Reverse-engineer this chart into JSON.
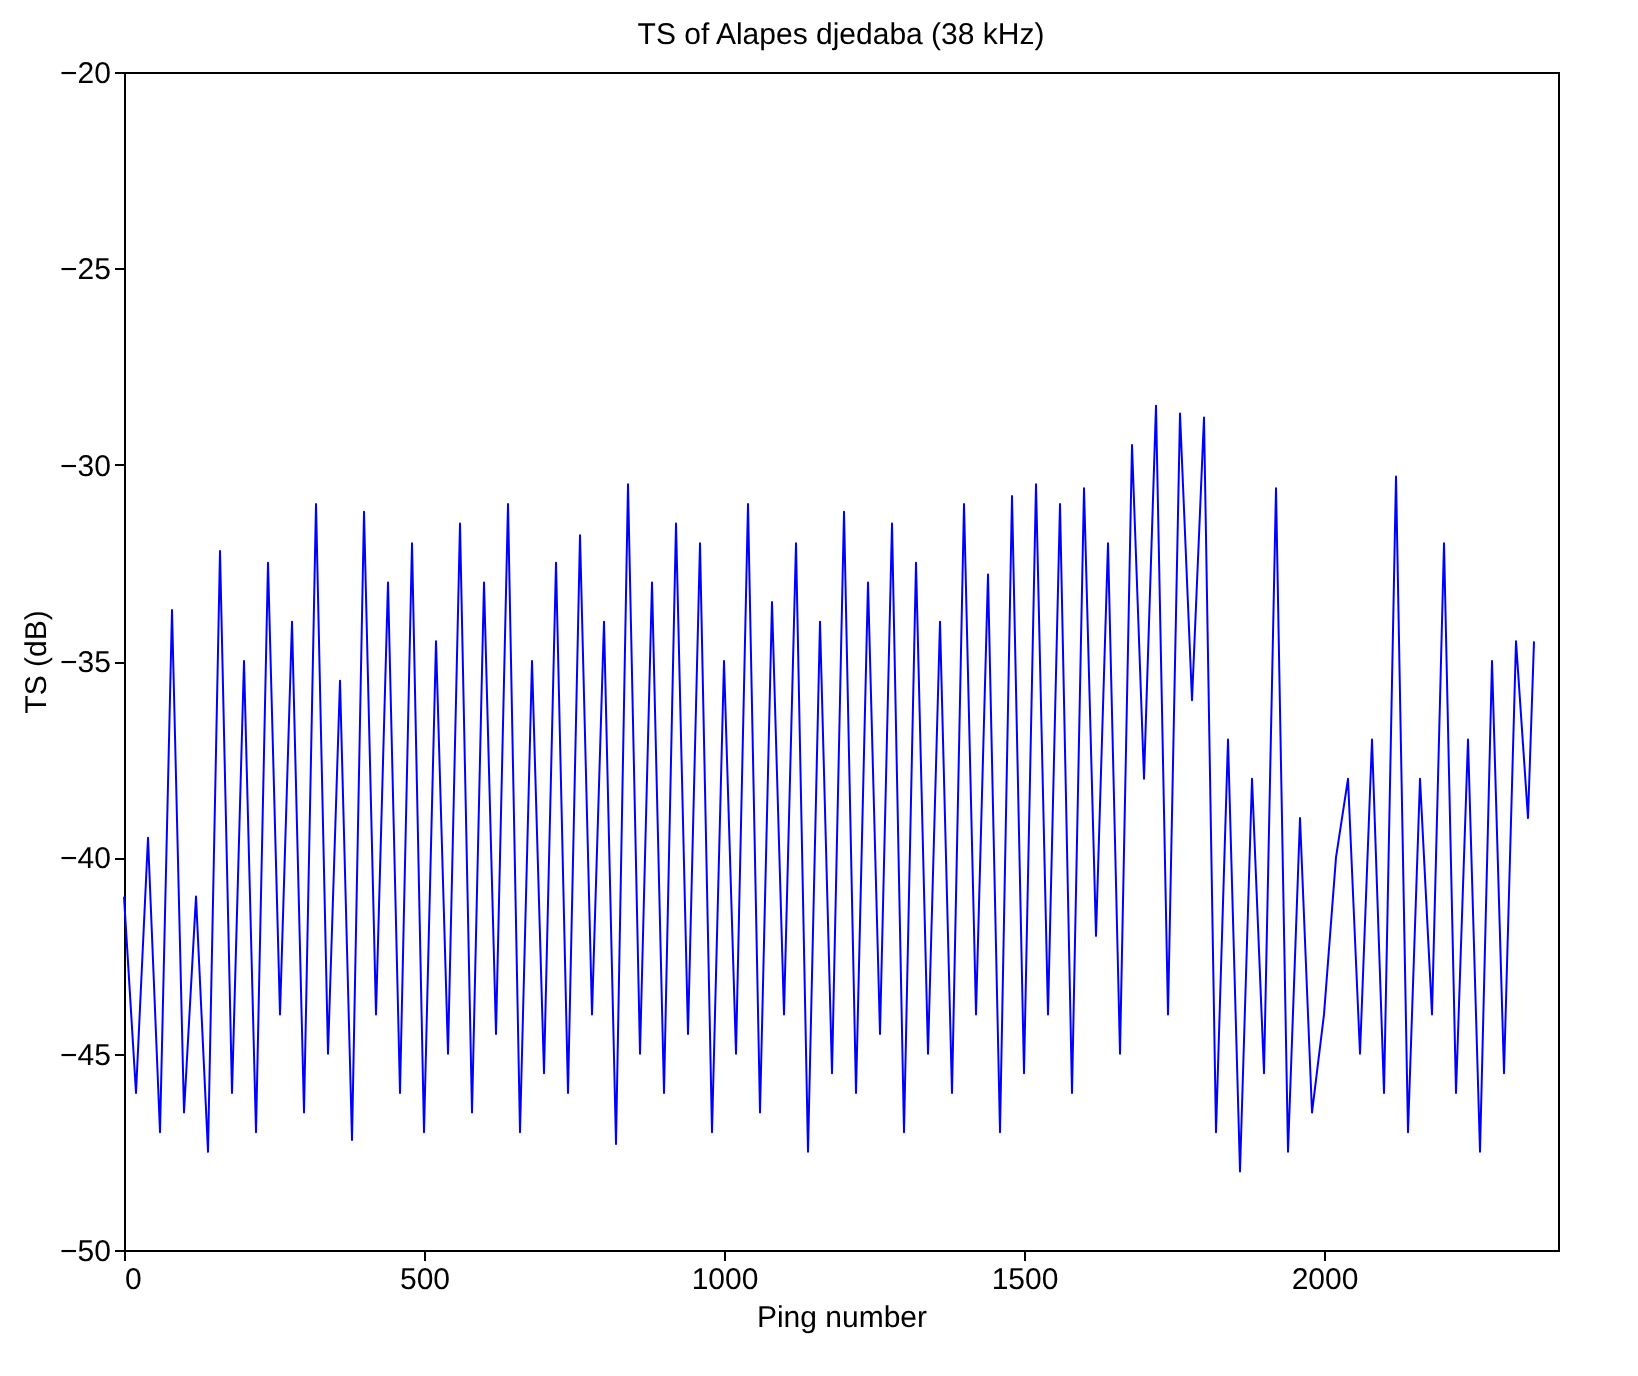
{
  "chart_data": {
    "type": "line",
    "title": "TS of Alapes djedaba (38 kHz)",
    "xlabel": "Ping number",
    "ylabel": "TS (dB)",
    "x": [
      0,
      20,
      40,
      60,
      80,
      100,
      120,
      140,
      160,
      180,
      200,
      220,
      240,
      260,
      280,
      300,
      320,
      340,
      360,
      380,
      400,
      420,
      440,
      460,
      480,
      500,
      520,
      540,
      560,
      580,
      600,
      620,
      640,
      660,
      680,
      700,
      720,
      740,
      760,
      780,
      800,
      820,
      840,
      860,
      880,
      900,
      920,
      940,
      960,
      980,
      1000,
      1020,
      1040,
      1060,
      1080,
      1100,
      1120,
      1140,
      1160,
      1180,
      1200,
      1220,
      1240,
      1260,
      1280,
      1300,
      1320,
      1340,
      1360,
      1380,
      1400,
      1420,
      1440,
      1460,
      1480,
      1500,
      1520,
      1540,
      1560,
      1580,
      1600,
      1620,
      1640,
      1660,
      1680,
      1700,
      1720,
      1740,
      1760,
      1780,
      1800,
      1820,
      1840,
      1860,
      1880,
      1900,
      1920,
      1940,
      1960,
      1980,
      2000,
      2020,
      2040,
      2060,
      2080,
      2100,
      2120,
      2140,
      2160,
      2180,
      2200,
      2220,
      2240,
      2260,
      2280,
      2300,
      2320,
      2340,
      2350
    ],
    "series": [
      {
        "color": "#0000ff",
        "values": [
          -41,
          -46,
          -39.5,
          -47,
          -33.7,
          -46.5,
          -41,
          -47.5,
          -32.2,
          -46,
          -35,
          -47,
          -32.5,
          -44,
          -34,
          -46.5,
          -31,
          -45,
          -35.5,
          -47.2,
          -31.2,
          -44,
          -33,
          -46,
          -32,
          -47,
          -34.5,
          -45,
          -31.5,
          -46.5,
          -33,
          -44.5,
          -31,
          -47,
          -35,
          -45.5,
          -32.5,
          -46,
          -31.8,
          -44,
          -34,
          -47.3,
          -30.5,
          -45,
          -33,
          -46,
          -31.5,
          -44.5,
          -32,
          -47,
          -35,
          -45,
          -31,
          -46.5,
          -33.5,
          -44,
          -32,
          -47.5,
          -34,
          -45.5,
          -31.2,
          -46,
          -33,
          -44.5,
          -31.5,
          -47,
          -32.5,
          -45,
          -34,
          -46,
          -31,
          -44,
          -32.8,
          -47,
          -30.8,
          -45.5,
          -30.5,
          -44,
          -31,
          -46,
          -30.6,
          -42,
          -32,
          -45,
          -29.5,
          -38,
          -28.5,
          -44,
          -28.7,
          -36,
          -28.8,
          -47,
          -37,
          -48,
          -38,
          -45.5,
          -30.6,
          -47.5,
          -39,
          -46.5,
          -44,
          -40,
          -38,
          -45,
          -37,
          -46,
          -30.3,
          -47,
          -38,
          -44,
          -32,
          -46,
          -37,
          -47.5,
          -35,
          -45.5,
          -34.5,
          -39,
          -34.5
        ]
      }
    ],
    "xlim": [
      0,
      2390
    ],
    "ylim": [
      -50,
      -20
    ],
    "xticks": [
      0,
      500,
      1000,
      1500,
      2000
    ],
    "yticks": [
      -50,
      -45,
      -40,
      -35,
      -30,
      -25,
      -20
    ],
    "grid": false,
    "marker": "none",
    "line_style": "solid"
  }
}
